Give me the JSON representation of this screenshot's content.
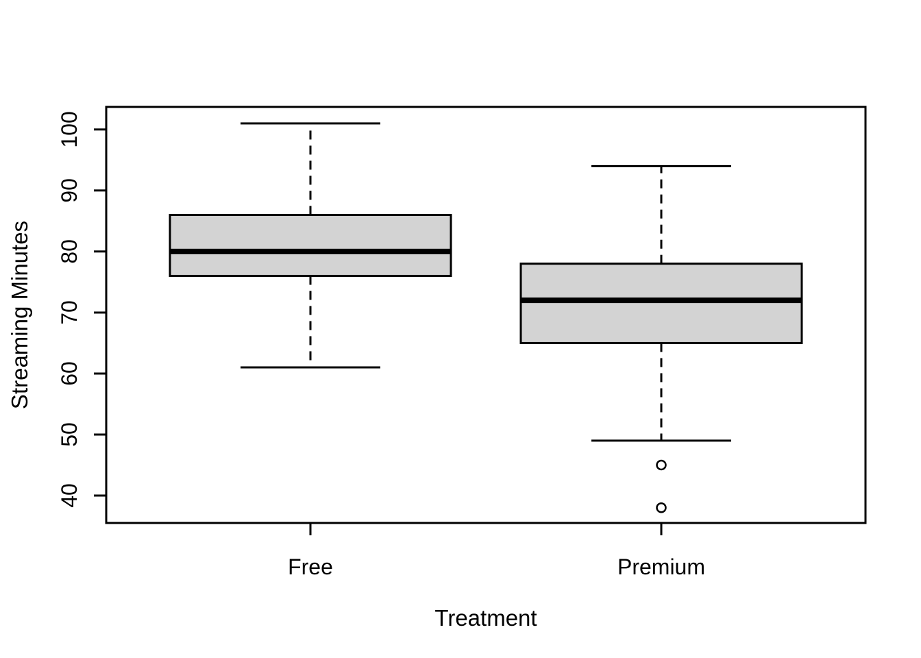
{
  "chart_data": {
    "type": "boxplot",
    "title": "",
    "xlabel": "Treatment",
    "ylabel": "Streaming Minutes",
    "categories": [
      "Free",
      "Premium"
    ],
    "y_ticks": [
      40,
      50,
      60,
      70,
      80,
      90,
      100
    ],
    "ylim": [
      35.5,
      103.7
    ],
    "grid": false,
    "legend": "none",
    "series": [
      {
        "name": "Free",
        "min": 61,
        "q1": 76,
        "median": 80,
        "q3": 86,
        "max": 101,
        "outliers": []
      },
      {
        "name": "Premium",
        "min": 49,
        "q1": 65,
        "median": 72,
        "q3": 78,
        "max": 94,
        "outliers": [
          45,
          38
        ]
      }
    ],
    "colors": {
      "box_fill": "#d3d3d3",
      "stroke": "#000000",
      "background": "#ffffff"
    }
  }
}
